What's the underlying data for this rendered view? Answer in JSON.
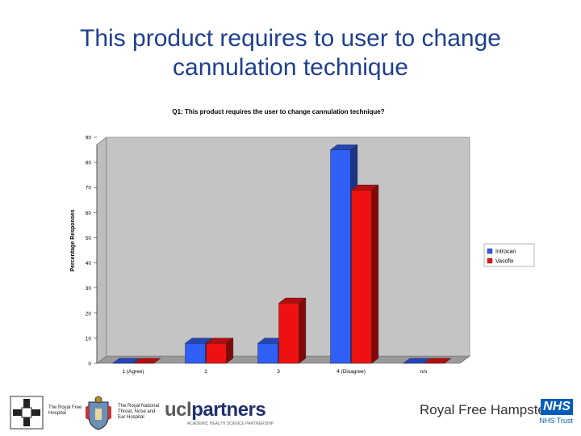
{
  "slide": {
    "title_line1": "This product requires to user to change",
    "title_line2": "cannulation technique"
  },
  "chart_data": {
    "type": "bar",
    "title": "Q1: This product requires the user to change cannulation technique?",
    "ylabel": "Percentage Responses",
    "xlabel": "",
    "categories": [
      "1 (Agree)",
      "2",
      "3",
      "4 (Disagree)",
      "n/s"
    ],
    "series": [
      {
        "name": "Introcan",
        "values": [
          0,
          8,
          8,
          85,
          0
        ],
        "color": "#2f5ff5"
      },
      {
        "name": "Vasofix",
        "values": [
          0,
          8,
          24,
          69,
          0
        ],
        "color": "#ee1111"
      }
    ],
    "ylim": [
      0,
      90
    ],
    "yticks": [
      0,
      10,
      20,
      30,
      40,
      50,
      60,
      70,
      80,
      90
    ],
    "grid": false,
    "legend": "right",
    "three_d": true
  },
  "footer": {
    "royal_free_line1": "The Royal Free",
    "royal_free_line2": "Hospital",
    "rntne_line1": "The Royal National",
    "rntne_line2": "Throat, Nose and",
    "rntne_line3": "Ear Hospital",
    "ucl_prefix": "ucl",
    "ucl_suffix": "partners",
    "ucl_tagline": "ACADEMIC HEALTH SCIENCE PARTNERSHIP",
    "royal_free_hampstead": "Royal Free Hampstead",
    "nhs": "NHS",
    "nhs_trust": "NHS Trust"
  }
}
